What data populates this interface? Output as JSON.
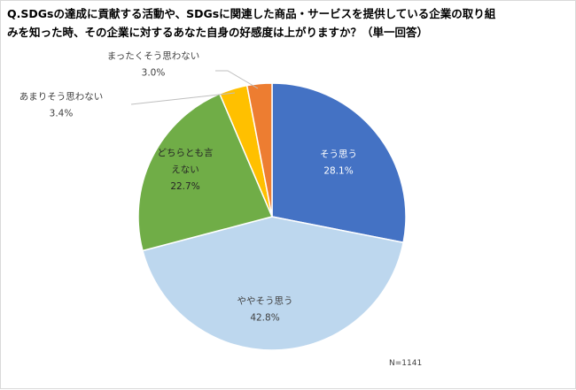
{
  "title": "Q.SDGsの達成に貢献する活動や、SDGsに関連した商品・サービスを提供している企業の取り組みを知った時、その企業に対するあなた自身の好感度は上がりますか？（単一回答）",
  "note": "N=1141",
  "chart_data": {
    "type": "pie",
    "title": "Q.SDGsの達成に貢献する活動や、SDGsに関連した商品・サービスを提供している企業の取り組みを知った時、その企業に対するあなた自身の好感度は上がりますか？（単一回答）",
    "start": "12 o'clock, clockwise",
    "slices": [
      {
        "label": "そう思う",
        "label_lines": [
          "そう思う"
        ],
        "value": 28.1,
        "value_text": "28.1%",
        "color": "#4472c4",
        "label_color": "#ffffff"
      },
      {
        "label": "ややそう思う",
        "label_lines": [
          "ややそう思う"
        ],
        "value": 42.8,
        "value_text": "42.8%",
        "color": "#bdd7ee",
        "label_color": "#404040"
      },
      {
        "label": "どちらとも言えない",
        "label_lines": [
          "どちらとも言",
          "えない"
        ],
        "value": 22.7,
        "value_text": "22.7%",
        "color": "#70ad47",
        "label_color": "#262626"
      },
      {
        "label": "あまりそう思わない",
        "label_lines": [
          "あまりそう思わない"
        ],
        "value": 3.4,
        "value_text": "3.4%",
        "color": "#ffc000",
        "label_color": "#404040"
      },
      {
        "label": "まったくそう思わない",
        "label_lines": [
          "まったくそう思わない"
        ],
        "value": 3.0,
        "value_text": "3.0%",
        "color": "#ed7d31",
        "label_color": "#404040"
      }
    ]
  }
}
